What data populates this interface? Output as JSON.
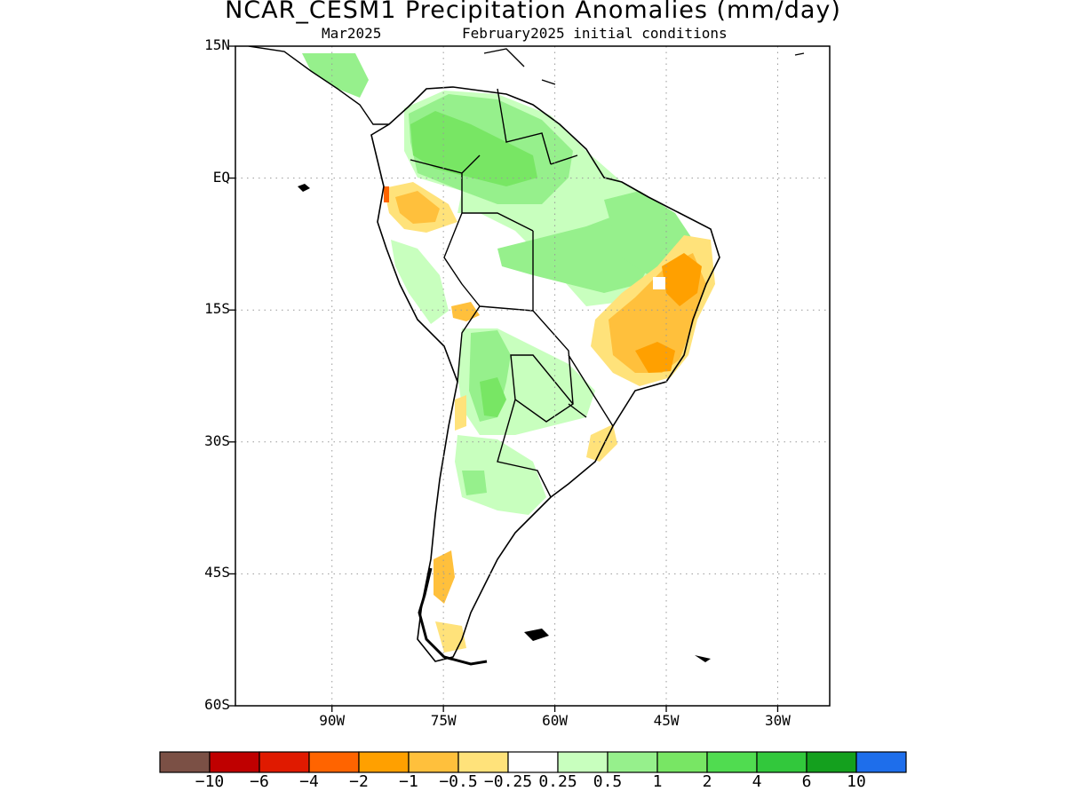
{
  "header": {
    "title": "NCAR_CESM1 Precipitation Anomalies (mm/day)",
    "target_month": "Mar2025",
    "init": "February2025 initial conditions"
  },
  "map": {
    "projection": "latlon",
    "lon_range": [
      -103,
      -23
    ],
    "lat_range": [
      -60,
      15
    ],
    "gridlines": "dotted",
    "y_ticks": [
      {
        "label": "15N",
        "lat": 15
      },
      {
        "label": "EQ",
        "lat": 0
      },
      {
        "label": "15S",
        "lat": -15
      },
      {
        "label": "30S",
        "lat": -30
      },
      {
        "label": "45S",
        "lat": -45
      },
      {
        "label": "60S",
        "lat": -60
      }
    ],
    "x_ticks": [
      {
        "label": "90W",
        "lon": -90
      },
      {
        "label": "75W",
        "lon": -75
      },
      {
        "label": "60W",
        "lon": -60
      },
      {
        "label": "45W",
        "lon": -45
      },
      {
        "label": "30W",
        "lon": -30
      }
    ]
  },
  "colorbar": {
    "colors": [
      "#7b5045",
      "#bf0000",
      "#e01a00",
      "#ff6400",
      "#ffa000",
      "#ffc03c",
      "#ffe27a",
      "#ffffff",
      "#c8ffbe",
      "#96f08c",
      "#78e664",
      "#50dc50",
      "#32c83c",
      "#14a01e",
      "#1e6eeb"
    ],
    "labels": [
      "−10",
      "−6",
      "−4",
      "−2",
      "−1",
      "−0.5",
      "−0.25",
      "0.25",
      "0.5",
      "1",
      "2",
      "4",
      "6",
      "10"
    ]
  },
  "anomaly_regions": [
    {
      "name": "Colombia-Venezuela wet",
      "level": "1",
      "color": "#96f08c"
    },
    {
      "name": "Venezuela core",
      "level": "2",
      "color": "#78e664"
    },
    {
      "name": "Eastern Brazil dry",
      "level": "-1",
      "color": "#ffc03c"
    },
    {
      "name": "Bahia core dry",
      "level": "-2",
      "color": "#ffa000"
    },
    {
      "name": "Paraguay-Bolivia wet",
      "level": "2",
      "color": "#78e664"
    }
  ]
}
